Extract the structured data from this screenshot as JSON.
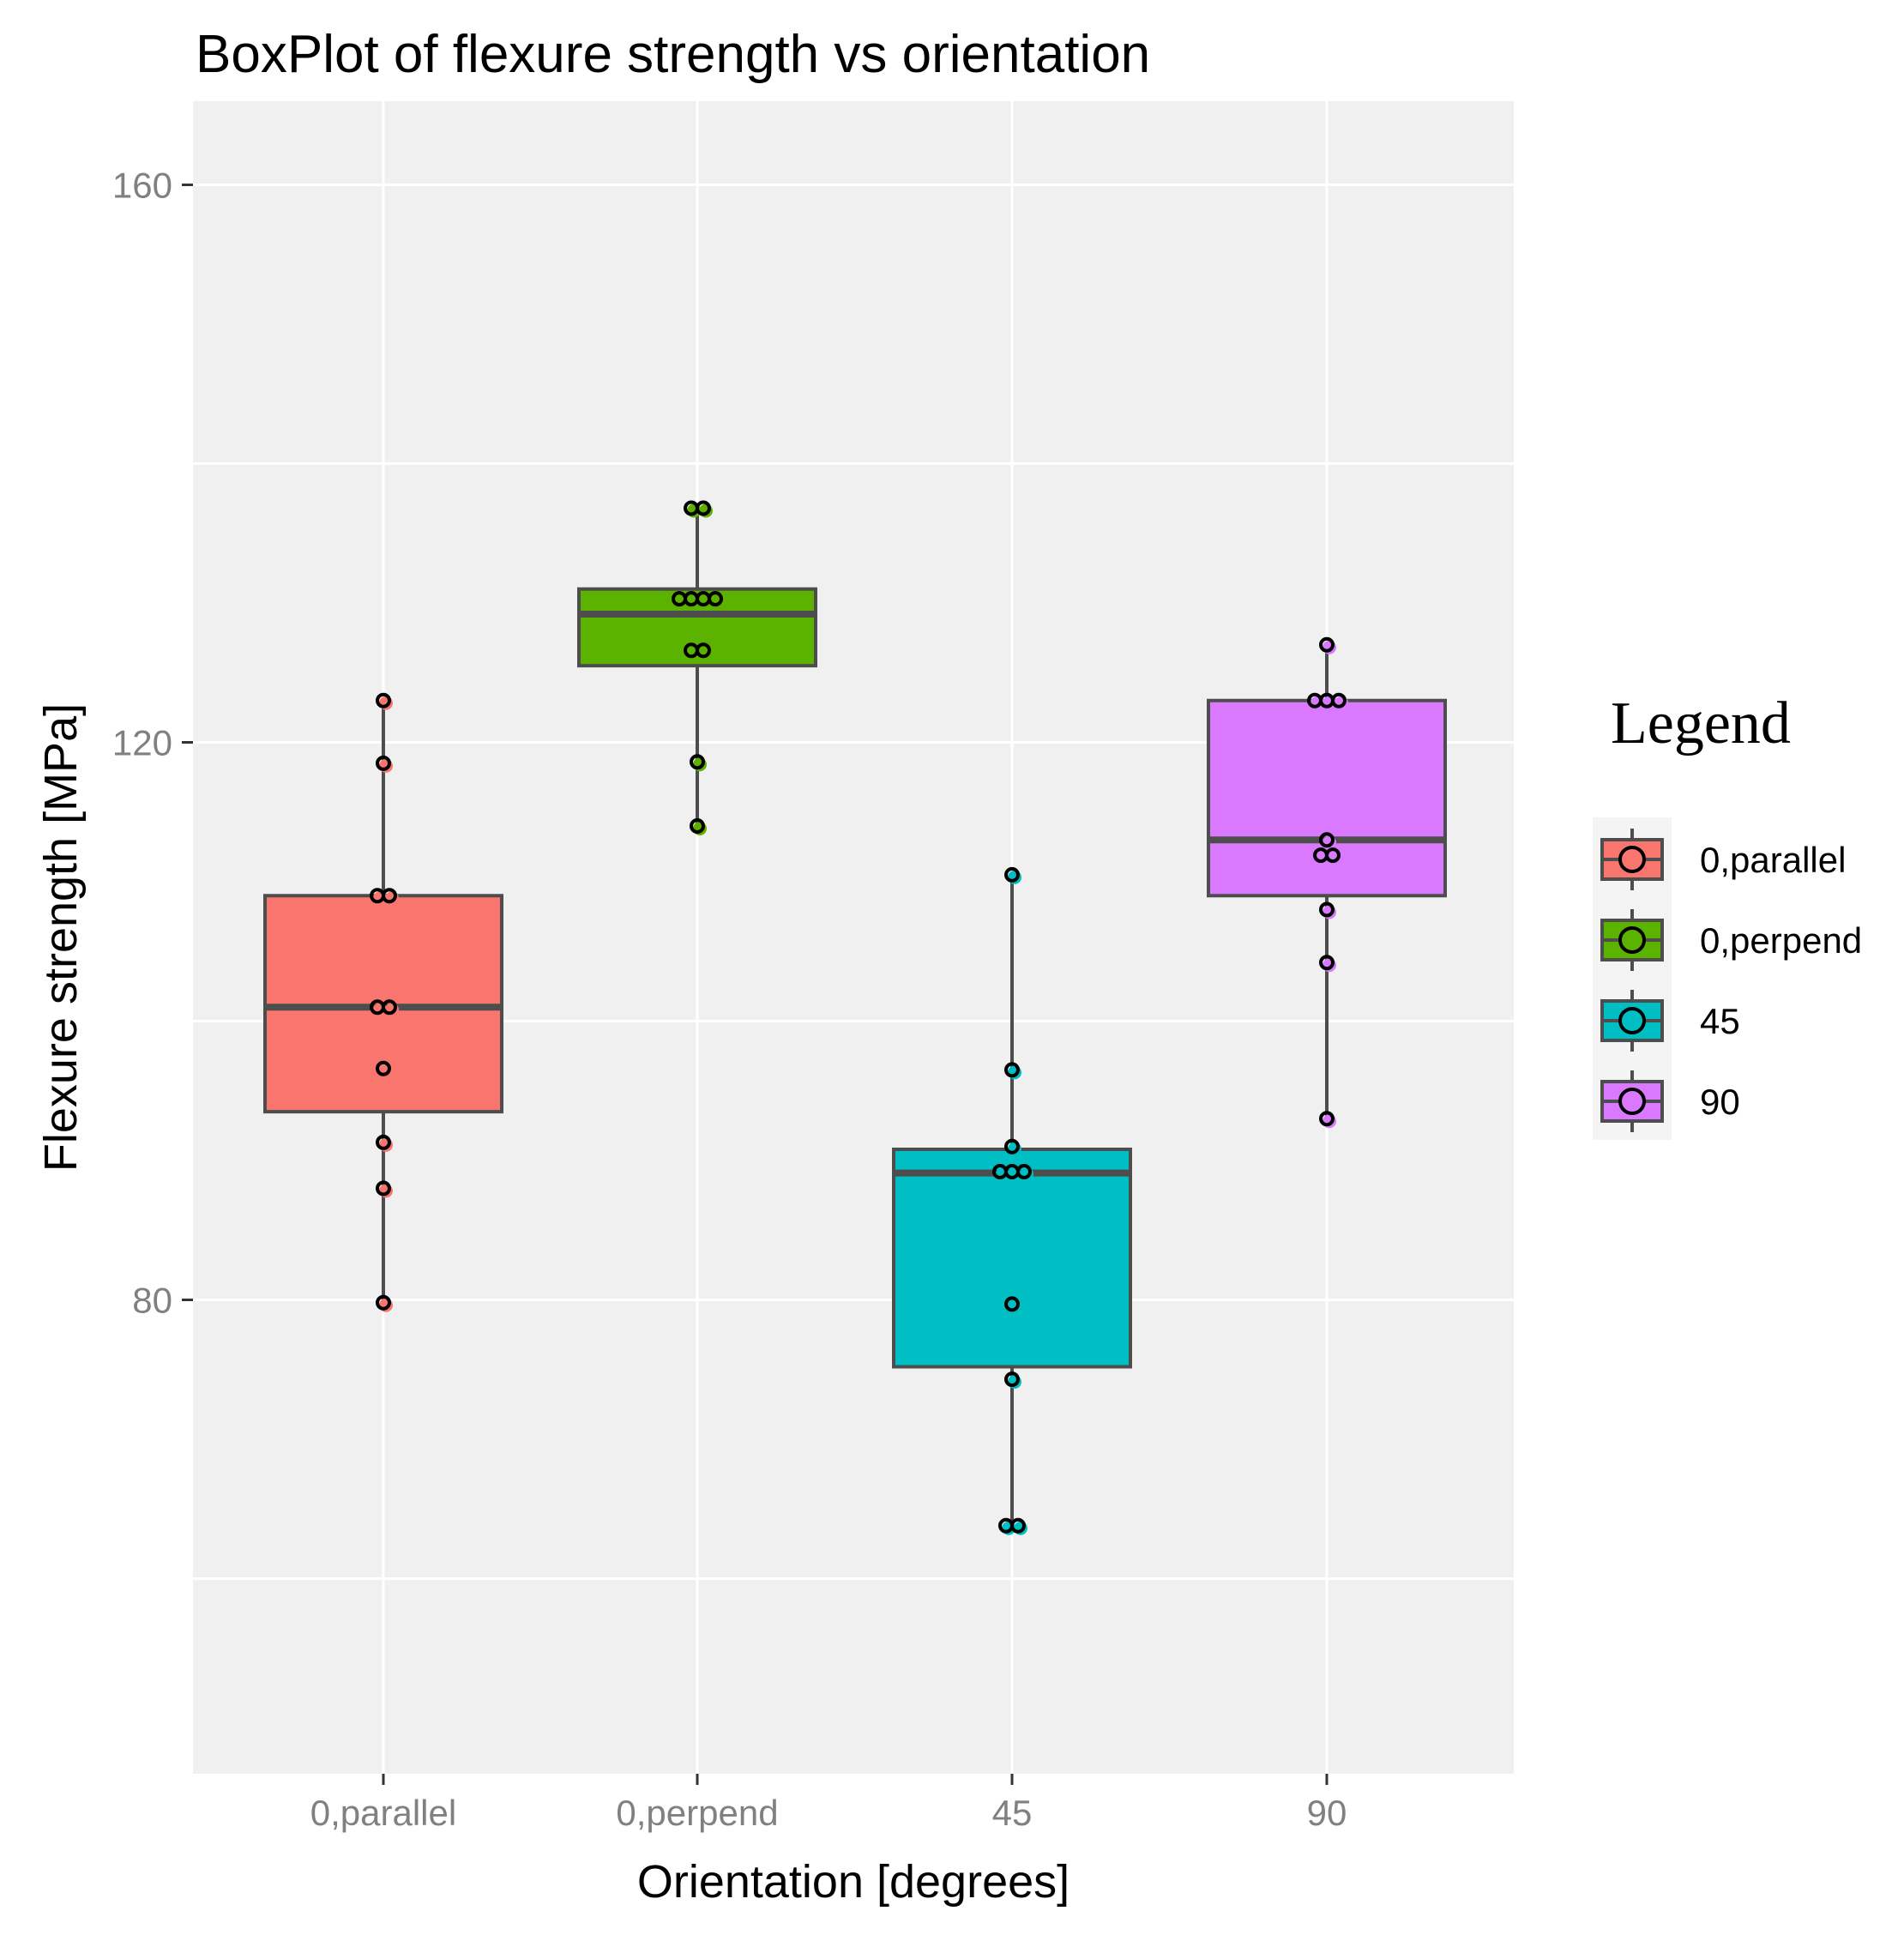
{
  "chart_data": {
    "type": "boxplot",
    "title": "BoxPlot of flexure strength vs orientation",
    "xlabel": "Orientation [degrees]",
    "ylabel": "Flexure strength [MPa]",
    "ylim": [
      46,
      166
    ],
    "y_ticks": [
      160,
      120,
      80
    ],
    "y_gridlines": [
      60,
      80,
      100,
      120,
      140,
      160
    ],
    "categories": [
      "0,parallel",
      "0,perpend",
      "45",
      "90"
    ],
    "grid": true,
    "legend": {
      "title": "Legend",
      "position": "right",
      "labels": [
        "0,parallel",
        "0,perpend",
        "45",
        "90"
      ]
    },
    "colors": {
      "0,parallel": "#F8766D",
      "0,perpend": "#5BB300",
      "45": "#00BFC4",
      "90": "#DA79FF"
    },
    "series": [
      {
        "name": "0,parallel",
        "stats": {
          "min": 80,
          "q1": 93.5,
          "median": 101,
          "q3": 109,
          "max": 123
        },
        "points": [
          123,
          118.5,
          109,
          109,
          101,
          101,
          96.6,
          91.3,
          88,
          79.8
        ]
      },
      {
        "name": "0,perpend",
        "stats": {
          "min": 114,
          "q1": 125.5,
          "median": 129.2,
          "q3": 131,
          "max": 136.8
        },
        "points": [
          136.8,
          136.8,
          130.3,
          130.3,
          130.3,
          130.3,
          126.6,
          126.6,
          118.6,
          114
        ]
      },
      {
        "name": "45",
        "stats": {
          "min": 64,
          "q1": 75.2,
          "median": 89.1,
          "q3": 90.8,
          "max": 110.5
        },
        "points": [
          110.5,
          96.5,
          91,
          89.2,
          89.2,
          89.2,
          79.7,
          74.3,
          63.8,
          63.8
        ]
      },
      {
        "name": "90",
        "stats": {
          "min": 93,
          "q1": 109,
          "median": 113,
          "q3": 123,
          "max": 127
        },
        "points": [
          127,
          123,
          123,
          123,
          113,
          111.9,
          111.9,
          108,
          104.2,
          93
        ]
      }
    ]
  }
}
